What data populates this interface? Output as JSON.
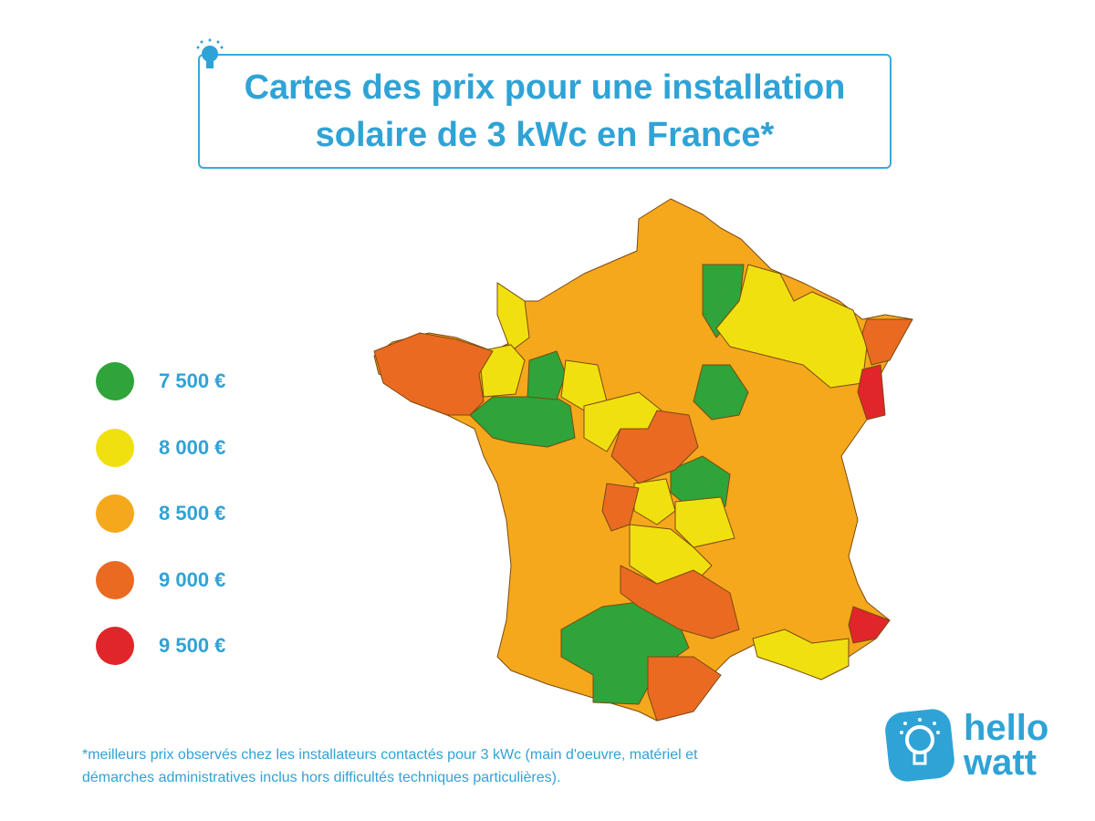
{
  "title": {
    "line1": "Cartes des prix pour une installation",
    "line2": "solaire de 3 kWc en France*",
    "icon": "lightbulb-icon"
  },
  "legend": [
    {
      "label": "7 500 €",
      "color": "#2ea43a"
    },
    {
      "label": "8 000 €",
      "color": "#f0e010"
    },
    {
      "label": "8 500 €",
      "color": "#f6a81c"
    },
    {
      "label": "9 000 €",
      "color": "#ea6a22"
    },
    {
      "label": "9 500 €",
      "color": "#e0262a"
    }
  ],
  "map": {
    "border_color": "#7a4a10",
    "base_price": "8 500 €"
  },
  "footnote": {
    "line1": "*meilleurs prix observés chez les installateurs contactés pour 3 kWc (main d'oeuvre, matériel et",
    "line2": "démarches administratives inclus hors difficultés techniques particulières)."
  },
  "logo": {
    "line1": "hello",
    "line2": "watt",
    "color": "#2fa3d6"
  }
}
